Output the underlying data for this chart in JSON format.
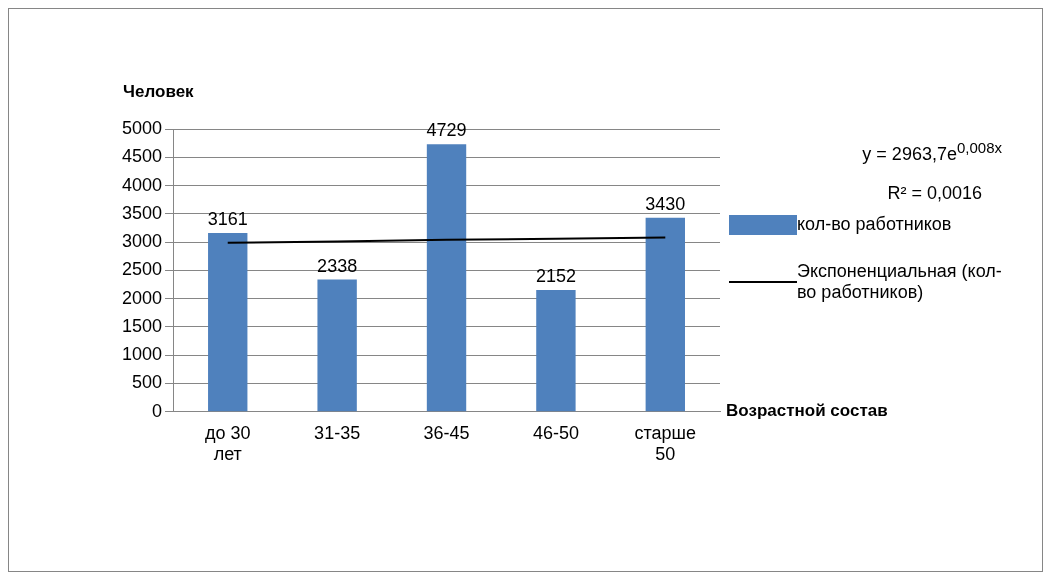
{
  "chart_data": {
    "type": "bar",
    "xlabel": "Возрастной состав",
    "ylabel": "Человек",
    "categories": [
      "до 30 лет",
      "31-35",
      "36-45",
      "46-50",
      "старше 50"
    ],
    "series": [
      {
        "name": "кол-во работников",
        "color": "#4f81bd",
        "values": [
          3161,
          2338,
          4729,
          2152,
          3430
        ],
        "value_labels": [
          "3161",
          "2338",
          "4729",
          "2152",
          "3430"
        ]
      },
      {
        "name": "Экспоненциальная (кол-во работников)",
        "type": "line",
        "color": "#000000",
        "values": [
          2990,
          3010,
          3040,
          3060,
          3080
        ]
      }
    ],
    "ylim": [
      0,
      5000
    ],
    "yticks": [
      0,
      500,
      1000,
      1500,
      2000,
      2500,
      3000,
      3500,
      4000,
      4500,
      5000
    ],
    "grid": "y",
    "legend": "right",
    "marker": "none",
    "line_style": "solid",
    "annotations": [
      "y = 2963,7e$^{0,008x}$",
      "R² = 0,0016"
    ]
  }
}
